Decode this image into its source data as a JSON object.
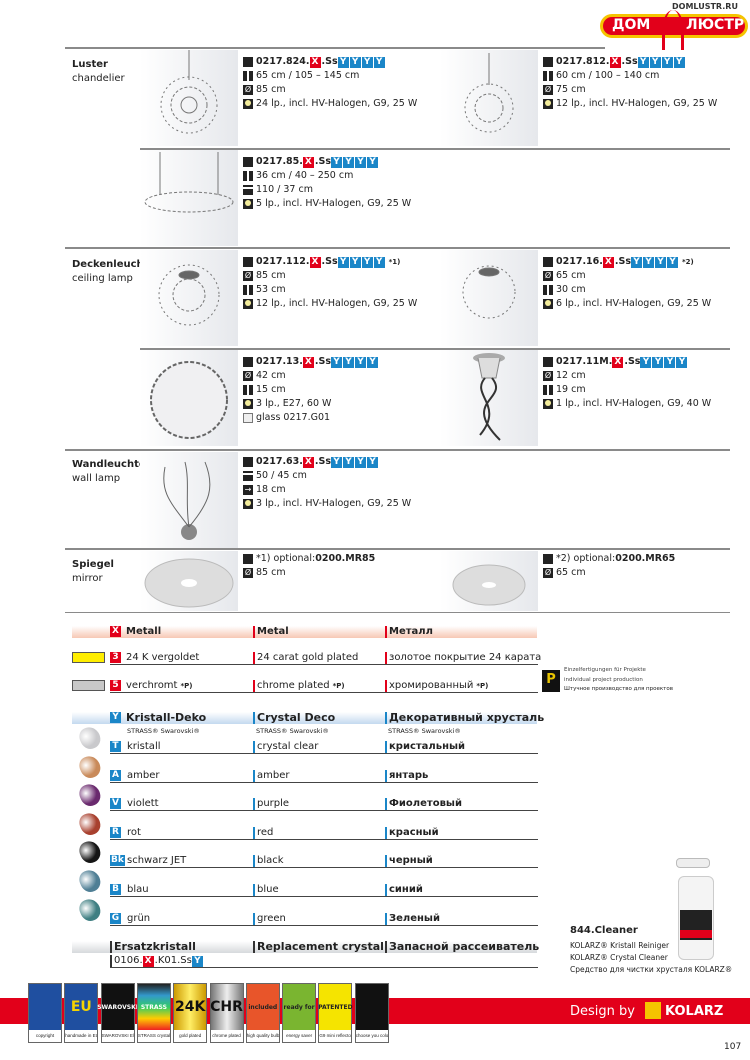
{
  "brand": {
    "site": "DOMLUSTR.RU",
    "logo_left": "ДОМ",
    "logo_right": "ЛЮСТР"
  },
  "categories": [
    {
      "de": "Luster",
      "en": "chandelier"
    },
    {
      "de": "Deckenleuchte",
      "en": "ceiling lamp"
    },
    {
      "de": "Wandleuchte",
      "en": "wall lamp"
    },
    {
      "de": "Spiegel",
      "en": "mirror"
    }
  ],
  "products": [
    {
      "code": "0217.824.",
      "metal": "X",
      "suffix": ".Ss",
      "crystals": [
        "Y",
        "Y",
        "Y",
        "Y"
      ],
      "footnote": "",
      "specs": [
        {
          "icon": "height",
          "text": "65 cm / 105 – 145 cm"
        },
        {
          "icon": "diameter",
          "text": "85 cm"
        },
        {
          "icon": "bulb",
          "text": "24 lp., incl. HV-Halogen, G9, 25 W"
        }
      ]
    },
    {
      "code": "0217.812.",
      "metal": "X",
      "suffix": ".Ss",
      "crystals": [
        "Y",
        "Y",
        "Y",
        "Y"
      ],
      "footnote": "",
      "specs": [
        {
          "icon": "height",
          "text": "60 cm / 100 – 140 cm"
        },
        {
          "icon": "diameter",
          "text": "75 cm"
        },
        {
          "icon": "bulb",
          "text": "12 lp., incl. HV-Halogen, G9, 25 W"
        }
      ]
    },
    {
      "code": "0217.85.",
      "metal": "X",
      "suffix": ".Ss",
      "crystals": [
        "Y",
        "Y",
        "Y",
        "Y"
      ],
      "footnote": "",
      "specs": [
        {
          "icon": "height",
          "text": "36 cm / 40 – 250 cm"
        },
        {
          "icon": "length",
          "text": "110 / 37 cm"
        },
        {
          "icon": "bulb",
          "text": "5 lp., incl. HV-Halogen, G9, 25 W"
        }
      ]
    },
    {
      "code": "0217.112.",
      "metal": "X",
      "suffix": ".Ss",
      "crystals": [
        "Y",
        "Y",
        "Y",
        "Y"
      ],
      "footnote": "*1)",
      "specs": [
        {
          "icon": "diameter",
          "text": "85 cm"
        },
        {
          "icon": "height",
          "text": "53 cm"
        },
        {
          "icon": "bulb",
          "text": "12 lp., incl. HV-Halogen, G9, 25 W"
        }
      ]
    },
    {
      "code": "0217.16.",
      "metal": "X",
      "suffix": ".Ss",
      "crystals": [
        "Y",
        "Y",
        "Y",
        "Y"
      ],
      "footnote": "*2)",
      "specs": [
        {
          "icon": "diameter",
          "text": "65 cm"
        },
        {
          "icon": "height",
          "text": "30 cm"
        },
        {
          "icon": "bulb",
          "text": "6 lp., incl. HV-Halogen, G9, 25 W"
        }
      ]
    },
    {
      "code": "0217.13.",
      "metal": "X",
      "suffix": ".Ss",
      "crystals": [
        "Y",
        "Y",
        "Y",
        "Y"
      ],
      "footnote": "",
      "specs": [
        {
          "icon": "diameter",
          "text": "42 cm"
        },
        {
          "icon": "height",
          "text": "15 cm"
        },
        {
          "icon": "bulb",
          "text": "3 lp., E27, 60 W"
        },
        {
          "icon": "glass",
          "text": "glass 0217.G01"
        }
      ]
    },
    {
      "code": "0217.11M.",
      "metal": "X",
      "suffix": ".Ss",
      "crystals": [
        "Y",
        "Y",
        "Y",
        "Y"
      ],
      "footnote": "",
      "specs": [
        {
          "icon": "diameter",
          "text": "12 cm"
        },
        {
          "icon": "height",
          "text": "19 cm"
        },
        {
          "icon": "bulb",
          "text": "1 lp., incl. HV-Halogen, G9, 40 W"
        }
      ]
    },
    {
      "code": "0217.63.",
      "metal": "X",
      "suffix": ".Ss",
      "crystals": [
        "Y",
        "Y",
        "Y",
        "Y"
      ],
      "footnote": "",
      "specs": [
        {
          "icon": "length",
          "text": "50 / 45 cm"
        },
        {
          "icon": "projection",
          "text": "18 cm"
        },
        {
          "icon": "bulb",
          "text": "3 lp., incl. HV-Halogen, G9, 25 W"
        }
      ]
    },
    {
      "code": "",
      "metal": "",
      "suffix": "",
      "crystals": [],
      "footnote": "",
      "optional_label": "*1) optional: ",
      "optional_code": "0200.MR85",
      "specs": [
        {
          "icon": "diameter",
          "text": "85 cm"
        }
      ]
    },
    {
      "code": "",
      "metal": "",
      "suffix": "",
      "crystals": [],
      "footnote": "",
      "optional_label": "*2) optional: ",
      "optional_code": "0200.MR65",
      "specs": [
        {
          "icon": "diameter",
          "text": "65 cm"
        }
      ]
    }
  ],
  "metal_table": {
    "key": "X",
    "headers": [
      "Metall",
      "Metal",
      "Металл"
    ],
    "rows": [
      {
        "key": "3",
        "swatch": "#ffee00",
        "cols": [
          "24 K vergoldet",
          "24 carat gold plated",
          "золотое покрытие 24 карата"
        ],
        "note": ""
      },
      {
        "key": "5",
        "swatch": "#c8c8c8",
        "cols": [
          "verchromt",
          "chrome plated",
          "хромированный"
        ],
        "note": "*P)"
      }
    ]
  },
  "project_note": {
    "icon": "P",
    "lines": [
      "Einzelfertigungen für Projekte",
      "individual project production",
      "Штучное производство для проектов"
    ]
  },
  "crystal_table": {
    "key": "Y",
    "headers": [
      "Kristall-Deko",
      "Crystal Deco",
      "Декоративный хрусталь"
    ],
    "sub": "STRASS® Swarovski®",
    "rows": [
      {
        "key": "T",
        "color": "#c9c9cc",
        "cols": [
          "kristall",
          "crystal clear",
          "кристальный"
        ]
      },
      {
        "key": "A",
        "color": "#c98a5a",
        "cols": [
          "amber",
          "amber",
          "янтарь"
        ]
      },
      {
        "key": "V",
        "color": "#6a2a6e",
        "cols": [
          "violett",
          "purple",
          "Фиолетовый"
        ]
      },
      {
        "key": "R",
        "color": "#a8402e",
        "cols": [
          "rot",
          "red",
          "красный"
        ]
      },
      {
        "key": "Bk",
        "color": "#151515",
        "cols": [
          "schwarz JET",
          "black",
          "черный"
        ]
      },
      {
        "key": "B",
        "color": "#4f7f95",
        "cols": [
          "blau",
          "blue",
          "синий"
        ]
      },
      {
        "key": "G",
        "color": "#3f7f82",
        "cols": [
          "grün",
          "green",
          "Зеленый"
        ]
      }
    ]
  },
  "replacement": {
    "headers": [
      "Ersatzkristall",
      "Replacement crystal",
      "Запасной рассеиватель"
    ],
    "code_prefix": "0106.",
    "metal": "X",
    "code_mid": ".K01.Ss",
    "crystal": "Y"
  },
  "cleaner": {
    "title": "844.Cleaner",
    "lines": [
      "KOLARZ® Kristall Reiniger",
      "KOLARZ® Crystal Cleaner",
      "Средство для чистки хрусталя KOLARZ®"
    ]
  },
  "badges": [
    {
      "icon": "eu-stars",
      "caption": "copyright",
      "text": ""
    },
    {
      "icon": "eu-stars",
      "caption": "handmade in EU",
      "text": "EU"
    },
    {
      "icon": "swarovski",
      "caption": "SWAROVSKI Elements",
      "text": "SWAROVSKI"
    },
    {
      "icon": "strass",
      "caption": "STRASS crystal",
      "text": "STRASS"
    },
    {
      "icon": "gold",
      "caption": "gold plated",
      "text": "24K"
    },
    {
      "icon": "chrome",
      "caption": "chrome plated",
      "text": "CHR"
    },
    {
      "icon": "bulb-included",
      "caption": "high quality bulb",
      "text": "included"
    },
    {
      "icon": "bulb-ready",
      "caption": "energy saver",
      "text": "ready for"
    },
    {
      "icon": "reflector",
      "caption": "G9 mini reflector",
      "text": "PATENTED"
    },
    {
      "icon": "color-fan",
      "caption": "choose you colour",
      "text": ""
    }
  ],
  "footer": {
    "design_by": "Design by",
    "brand": "KOLARZ",
    "page_number": "107"
  },
  "colors": {
    "metal_key": "#e2001a",
    "crystal_key": "#1a86c8",
    "footer_band": "#e2001a"
  }
}
